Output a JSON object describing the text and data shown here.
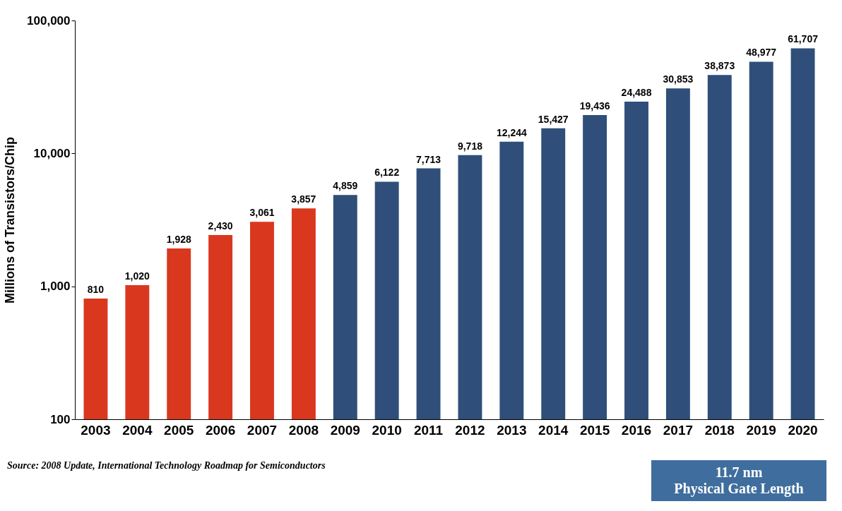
{
  "chart_data": {
    "type": "bar",
    "ylabel": "Millions of Transistors/Chip",
    "categories": [
      "2003",
      "2004",
      "2005",
      "2006",
      "2007",
      "2008",
      "2009",
      "2010",
      "2011",
      "2012",
      "2013",
      "2014",
      "2015",
      "2016",
      "2017",
      "2018",
      "2019",
      "2020"
    ],
    "values": [
      810,
      1020,
      1928,
      2430,
      3061,
      3857,
      4859,
      6122,
      7713,
      9718,
      12244,
      15427,
      19436,
      24488,
      30853,
      38873,
      48977,
      61707
    ],
    "colors": [
      "#d9381e",
      "#d9381e",
      "#d9381e",
      "#d9381e",
      "#d9381e",
      "#d9381e",
      "#2f4f7a",
      "#2f4f7a",
      "#2f4f7a",
      "#2f4f7a",
      "#2f4f7a",
      "#2f4f7a",
      "#2f4f7a",
      "#2f4f7a",
      "#2f4f7a",
      "#2f4f7a",
      "#2f4f7a",
      "#2f4f7a"
    ],
    "log": true,
    "ylim": [
      100,
      100000
    ],
    "yticks": [
      100,
      {
        "value": 1000,
        "label": "1,000"
      },
      {
        "value": 10000,
        "label": "10,000"
      },
      {
        "value": 100000,
        "label": "100,000"
      }
    ],
    "grid": false,
    "value_labels": [
      "810",
      "1,020",
      "1,928",
      "2,430",
      "3,061",
      "3,857",
      "4,859",
      "6,122",
      "7,713",
      "9,718",
      "12,244",
      "15,427",
      "19,436",
      "24,488",
      "30,853",
      "38,873",
      "48,977",
      "61,707"
    ],
    "annotations": [
      "Source:  2008 Update, International Technology Roadmap for Semiconductors",
      "11.7 nm\nPhysical Gate Length"
    ]
  }
}
